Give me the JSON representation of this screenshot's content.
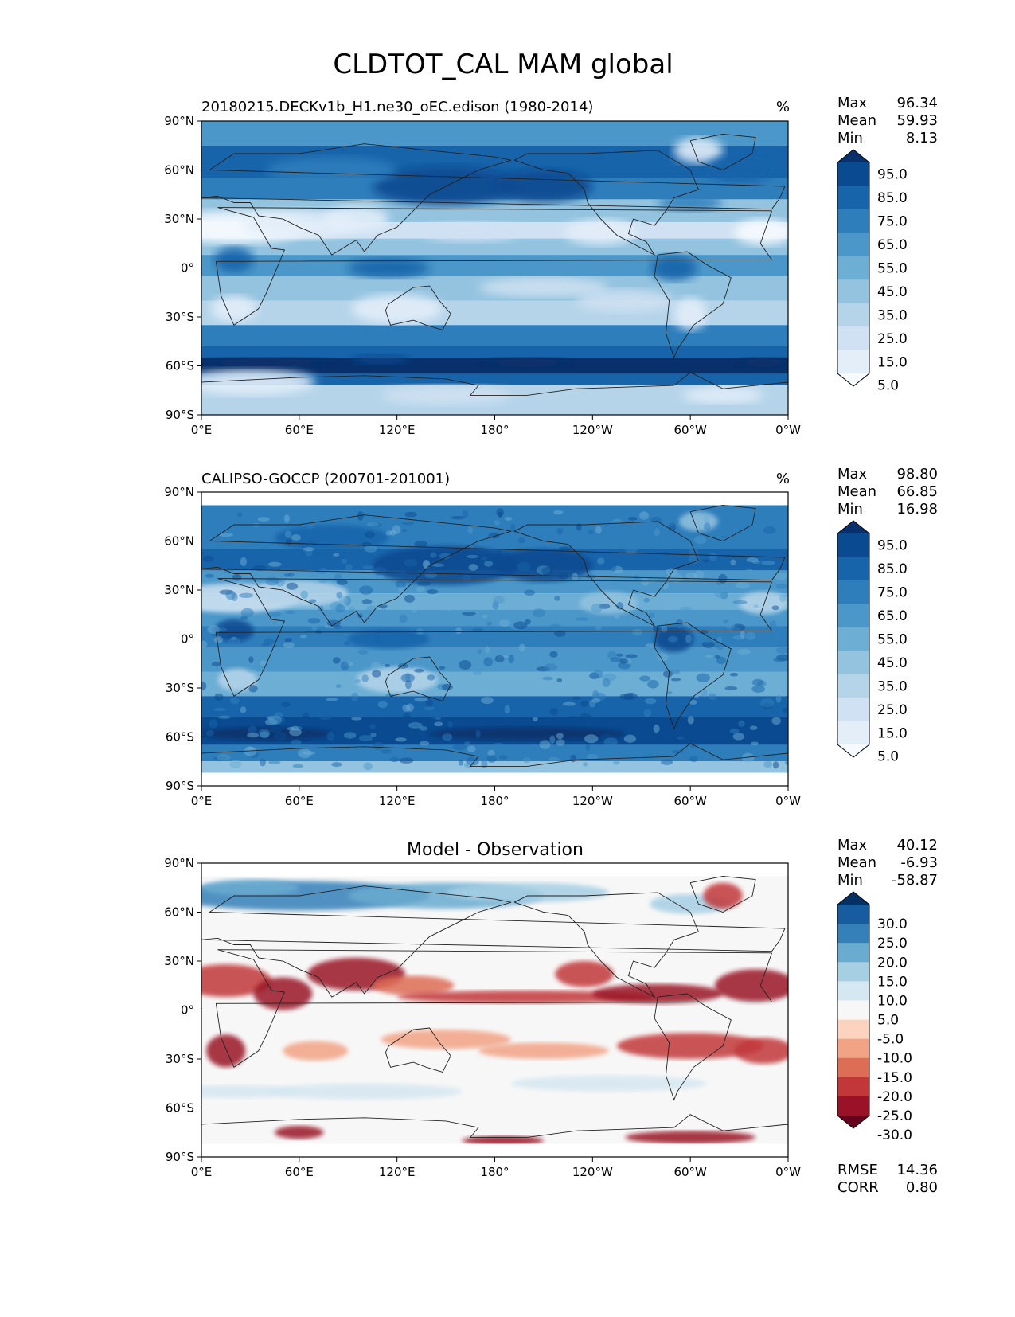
{
  "title": "CLDTOT_CAL MAM global",
  "colors": {
    "blues": [
      "#f7fbff",
      "#e3eef9",
      "#cfe1f2",
      "#b5d4e9",
      "#93c3df",
      "#6daed5",
      "#4b97c9",
      "#2f7ebc",
      "#1864aa",
      "#0a4a90",
      "#08306b"
    ],
    "diff": [
      "#67001f",
      "#9a1228",
      "#c2383a",
      "#de6d56",
      "#f2a385",
      "#fbd3be",
      "#f7f7f7",
      "#d5e7f1",
      "#a6cfe4",
      "#6aabd0",
      "#3580b9",
      "#175c9f",
      "#053061"
    ]
  },
  "chart_data": [
    {
      "type": "heatmap",
      "title_left": "20180215.DECKv1b_H1.ne30_oEC.edison (1980-2014)",
      "title_right": "%",
      "xticks": [
        "0°E",
        "60°E",
        "120°E",
        "180°",
        "120°W",
        "60°W",
        "0°W"
      ],
      "yticks": [
        "90°N",
        "60°N",
        "30°N",
        "0°",
        "30°S",
        "60°S",
        "90°S"
      ],
      "stats": [
        {
          "label": "Max",
          "value": "96.34"
        },
        {
          "label": "Mean",
          "value": "59.93"
        },
        {
          "label": "Min",
          "value": "8.13"
        }
      ],
      "colorbar": {
        "labels": [
          "95.0",
          "85.0",
          "75.0",
          "65.0",
          "55.0",
          "45.0",
          "35.0",
          "25.0",
          "15.0",
          "5.0"
        ],
        "extend": "both"
      }
    },
    {
      "type": "heatmap",
      "title_left": "CALIPSO-GOCCP (200701-201001)",
      "title_right": "%",
      "xticks": [
        "0°E",
        "60°E",
        "120°E",
        "180°",
        "120°W",
        "60°W",
        "0°W"
      ],
      "yticks": [
        "90°N",
        "60°N",
        "30°N",
        "0°",
        "30°S",
        "60°S",
        "90°S"
      ],
      "stats": [
        {
          "label": "Max",
          "value": "98.80"
        },
        {
          "label": "Mean",
          "value": "66.85"
        },
        {
          "label": "Min",
          "value": "16.98"
        }
      ],
      "colorbar": {
        "labels": [
          "95.0",
          "85.0",
          "75.0",
          "65.0",
          "55.0",
          "45.0",
          "35.0",
          "25.0",
          "15.0",
          "5.0"
        ],
        "extend": "both"
      }
    },
    {
      "type": "heatmap",
      "title_center": "Model - Observation",
      "xticks": [
        "0°E",
        "60°E",
        "120°E",
        "180°",
        "120°W",
        "60°W",
        "0°W"
      ],
      "yticks": [
        "90°N",
        "60°N",
        "30°N",
        "0°",
        "30°S",
        "60°S",
        "90°S"
      ],
      "stats": [
        {
          "label": "Max",
          "value": "40.12"
        },
        {
          "label": "Mean",
          "value": "-6.93"
        },
        {
          "label": "Min",
          "value": "-58.87"
        }
      ],
      "colorbar": {
        "labels": [
          "30.0",
          "25.0",
          "20.0",
          "15.0",
          "10.0",
          "5.0",
          "-5.0",
          "-10.0",
          "-15.0",
          "-20.0",
          "-25.0",
          "-30.0"
        ],
        "extend": "both"
      },
      "stats_bottom": [
        {
          "label": "RMSE",
          "value": "14.36"
        },
        {
          "label": "CORR",
          "value": "0.80"
        }
      ]
    }
  ]
}
